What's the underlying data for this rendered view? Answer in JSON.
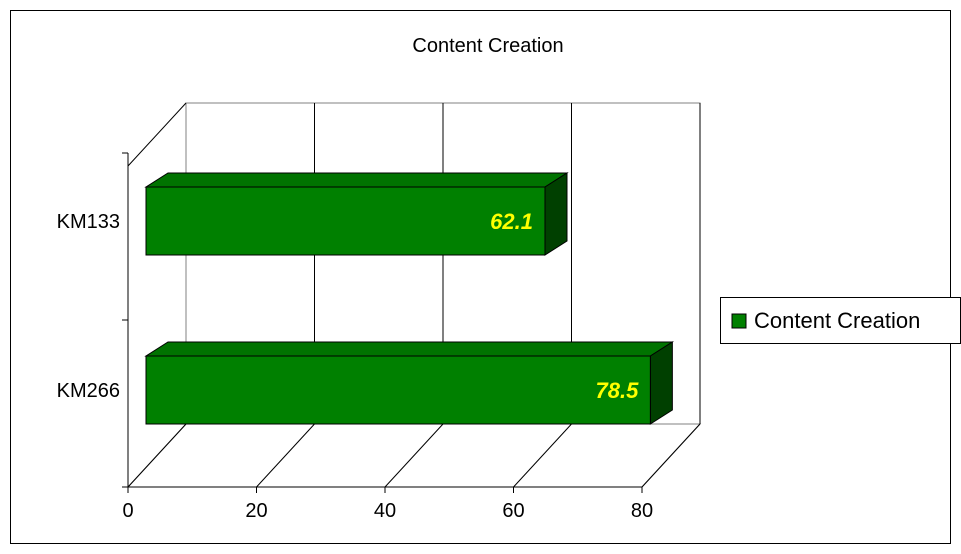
{
  "chart_data": {
    "type": "bar",
    "orientation": "horizontal",
    "title": "Content Creation",
    "categories": [
      "KM133",
      "KM266"
    ],
    "series": [
      {
        "name": "Content Creation",
        "values": [
          62.1,
          78.5
        ]
      }
    ],
    "data_labels": [
      "62.1",
      "78.5"
    ],
    "x_ticks": [
      "0",
      "20",
      "40",
      "60",
      "80"
    ],
    "xlim": [
      0,
      80
    ],
    "grid": true,
    "legend_position": "right",
    "colors": {
      "bar_front": "#008000",
      "bar_top": "#007300",
      "bar_side": "#004000",
      "label": "#ffff00",
      "legend_swatch": "#008000"
    }
  }
}
